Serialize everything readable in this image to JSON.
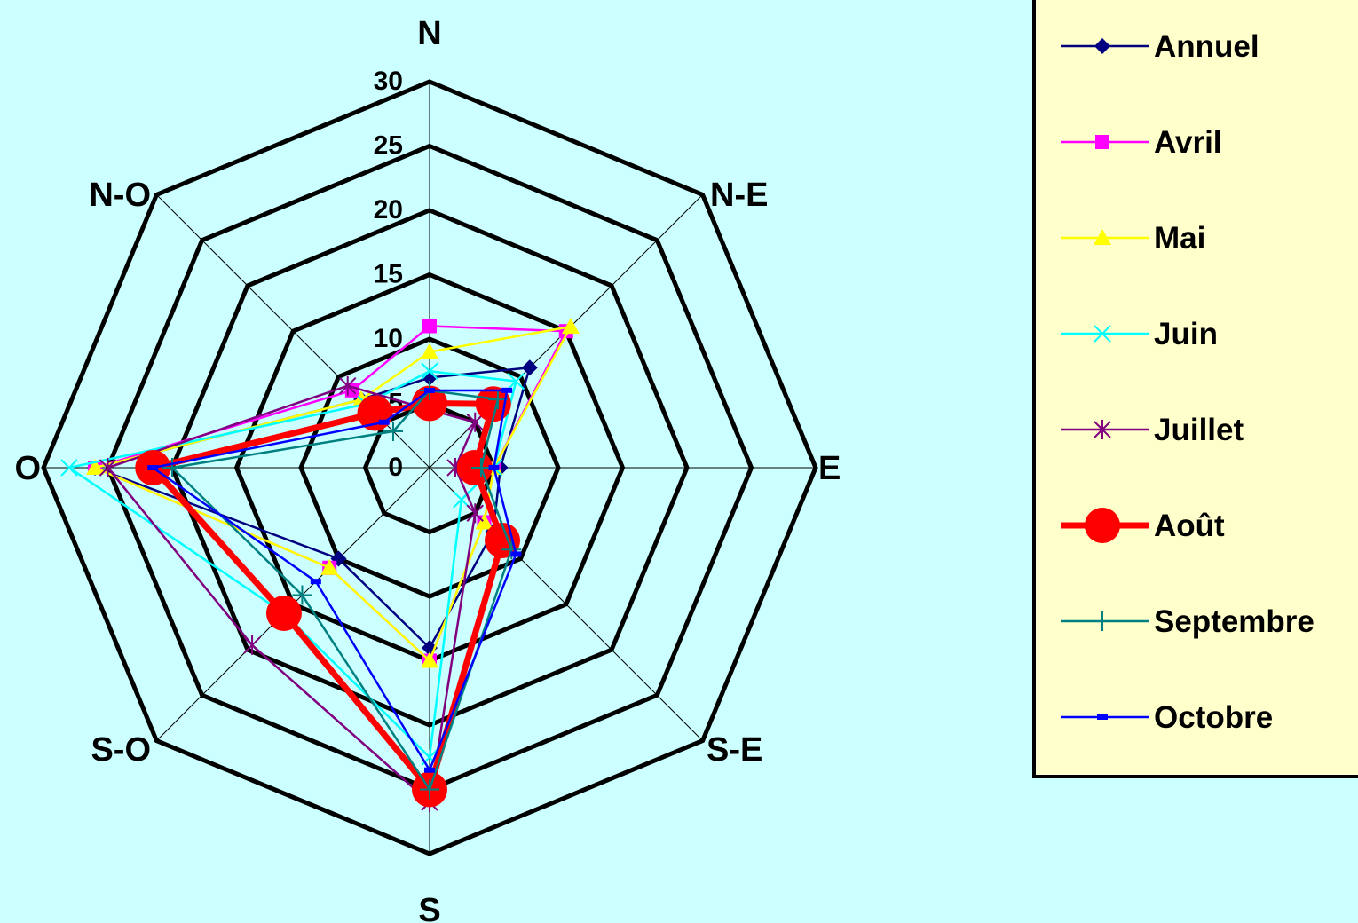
{
  "chart_data": {
    "type": "radar",
    "categories": [
      "N",
      "N-E",
      "E",
      "S-E",
      "S",
      "S-O",
      "O",
      "N-O"
    ],
    "rmax": 30,
    "ticks": [
      "0",
      "5",
      "10",
      "15",
      "20",
      "25",
      "30"
    ],
    "grid": true,
    "legend_position": "right",
    "series": [
      {
        "name": "Annuel",
        "color": "#000080",
        "marker": "diamond",
        "values": [
          7,
          11,
          5.5,
          7,
          14,
          10,
          26,
          7.5
        ]
      },
      {
        "name": "Avril",
        "color": "#FF00FF",
        "marker": "square",
        "values": [
          11,
          15,
          5,
          6,
          15,
          11,
          26,
          8.5
        ]
      },
      {
        "name": "Mai",
        "color": "#FFFF00",
        "marker": "triangle",
        "values": [
          9,
          15.5,
          5,
          6,
          15,
          11,
          26,
          7.5
        ]
      },
      {
        "name": "Juin",
        "color": "#00FFFF",
        "marker": "x",
        "values": [
          7.5,
          9.5,
          5,
          3.5,
          22.5,
          16,
          28,
          7
        ]
      },
      {
        "name": "Juillet",
        "color": "#800080",
        "marker": "star",
        "values": [
          4.5,
          5,
          2,
          5,
          26,
          19.5,
          25,
          9
        ]
      },
      {
        "name": "Août",
        "color": "#FF0000",
        "marker": "circle",
        "values": [
          5,
          7,
          3.5,
          8,
          25,
          16,
          21.5,
          6
        ]
      },
      {
        "name": "Septembre",
        "color": "#008080",
        "marker": "plus",
        "values": [
          6,
          7.5,
          4,
          9,
          25,
          14,
          20,
          4
        ]
      },
      {
        "name": "Octobre",
        "color": "#0000FF",
        "marker": "dash",
        "values": [
          6,
          8.5,
          5,
          9.5,
          23.5,
          12.5,
          21.5,
          5
        ]
      }
    ]
  }
}
